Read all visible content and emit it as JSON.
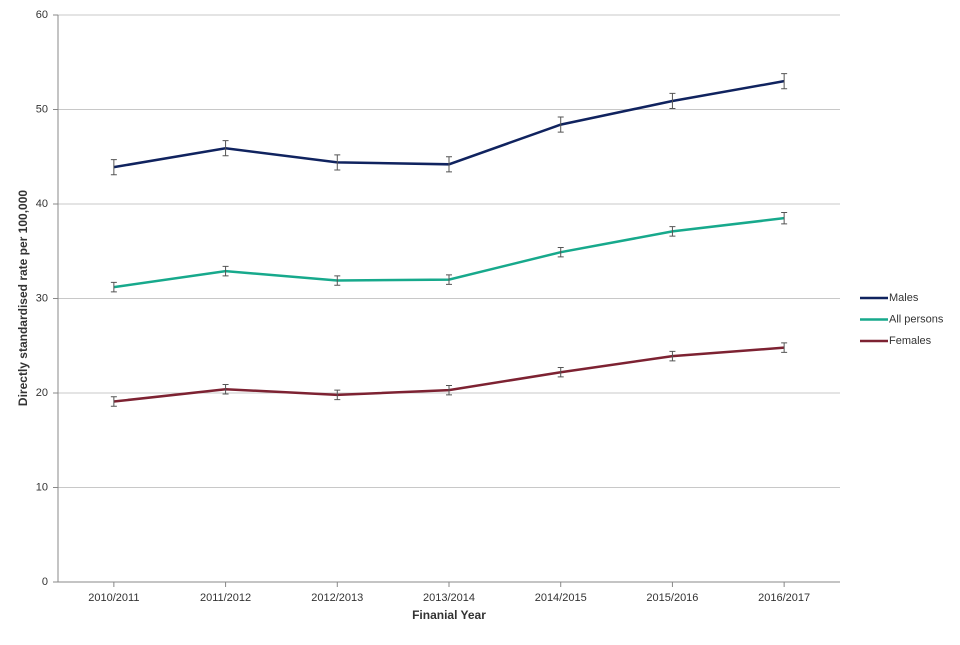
{
  "chart_data": {
    "type": "line",
    "xlabel": "Finanial Year",
    "ylabel": "Directly standardised rate per 100,000",
    "categories": [
      "2010/2011",
      "2011/2012",
      "2012/2013",
      "2013/2014",
      "2014/2015",
      "2015/2016",
      "2016/2017"
    ],
    "series": [
      {
        "name": "Males",
        "color": "#10235f",
        "values": [
          43.9,
          45.9,
          44.4,
          44.2,
          48.4,
          50.9,
          53.0
        ],
        "errors": [
          0.8,
          0.8,
          0.8,
          0.8,
          0.8,
          0.8,
          0.8
        ]
      },
      {
        "name": "All persons",
        "color": "#17a98c",
        "values": [
          31.2,
          32.9,
          31.9,
          32.0,
          34.9,
          37.1,
          38.5
        ],
        "errors": [
          0.5,
          0.5,
          0.5,
          0.5,
          0.5,
          0.5,
          0.6
        ]
      },
      {
        "name": "Females",
        "color": "#7d2232",
        "values": [
          19.1,
          20.4,
          19.8,
          20.3,
          22.2,
          23.9,
          24.8
        ],
        "errors": [
          0.5,
          0.5,
          0.5,
          0.5,
          0.5,
          0.5,
          0.5
        ]
      }
    ],
    "ylim": [
      0,
      60
    ],
    "yticks": [
      0,
      10,
      20,
      30,
      40,
      50,
      60
    ],
    "grid": true,
    "legend": "right"
  }
}
